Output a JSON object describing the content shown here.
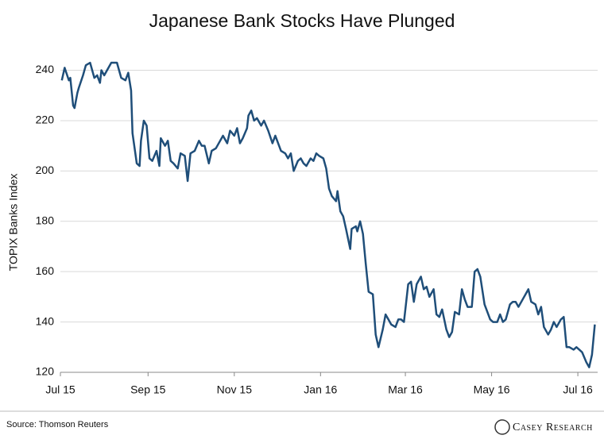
{
  "chart_data": {
    "type": "line",
    "title": "Japanese Bank Stocks Have Plunged",
    "y_label": "TOPIX Banks Index",
    "source": "Source: Thomson Reuters",
    "brand": "Casey Research",
    "color": "#1f4e79",
    "grid": true,
    "xlim": [
      0,
      380
    ],
    "xticks": [
      {
        "value": 0,
        "label": "Jul 15"
      },
      {
        "value": 62,
        "label": "Sep 15"
      },
      {
        "value": 123,
        "label": "Nov 15"
      },
      {
        "value": 184,
        "label": "Jan 16"
      },
      {
        "value": 244,
        "label": "Mar 16"
      },
      {
        "value": 305,
        "label": "May 16"
      },
      {
        "value": 366,
        "label": "Jul 16"
      }
    ],
    "ylim": [
      120,
      249
    ],
    "yticks": [
      120,
      140,
      160,
      180,
      200,
      220,
      240
    ],
    "x": [
      1,
      3,
      6,
      7,
      9,
      10,
      12,
      13,
      16,
      18,
      21,
      24,
      26,
      28,
      29,
      31,
      33,
      36,
      40,
      43,
      46,
      48,
      50,
      51,
      54,
      56,
      57,
      59,
      61,
      63,
      65,
      68,
      70,
      71,
      74,
      76,
      78,
      80,
      83,
      85,
      88,
      90,
      92,
      95,
      98,
      100,
      102,
      105,
      107,
      110,
      113,
      115,
      118,
      120,
      123,
      125,
      127,
      129,
      132,
      133,
      135,
      137,
      139,
      142,
      144,
      147,
      150,
      152,
      154,
      156,
      159,
      161,
      163,
      165,
      168,
      170,
      172,
      174,
      177,
      179,
      181,
      183,
      186,
      188,
      190,
      192,
      195,
      196,
      198,
      200,
      202,
      205,
      206,
      209,
      210,
      212,
      214,
      216,
      218,
      221,
      223,
      225,
      228,
      230,
      232,
      234,
      237,
      239,
      241,
      243,
      246,
      248,
      250,
      252,
      255,
      257,
      259,
      261,
      264,
      266,
      268,
      270,
      273,
      275,
      277,
      279,
      282,
      284,
      286,
      288,
      291,
      293,
      295,
      297,
      300,
      302,
      304,
      306,
      309,
      311,
      313,
      315,
      318,
      320,
      322,
      324,
      327,
      329,
      331,
      333,
      336,
      338,
      340,
      342,
      345,
      347,
      349,
      351,
      354,
      356,
      358,
      360,
      363,
      365,
      367,
      369,
      372,
      374,
      376,
      378
    ],
    "values": [
      236,
      241,
      236,
      237,
      226,
      225,
      231,
      233,
      238,
      242,
      243,
      237,
      238,
      235,
      240,
      238,
      240,
      243,
      243,
      237,
      236,
      239,
      232,
      215,
      203,
      202,
      212,
      220,
      218,
      205,
      204,
      208,
      202,
      213,
      210,
      212,
      204,
      203,
      201,
      207,
      206,
      196,
      207,
      208,
      212,
      210,
      210,
      203,
      208,
      209,
      212,
      214,
      211,
      216,
      214,
      217,
      211,
      213,
      217,
      222,
      224,
      220,
      221,
      218,
      220,
      216,
      211,
      214,
      211,
      208,
      207,
      205,
      207,
      200,
      204,
      205,
      203,
      202,
      205,
      204,
      207,
      206,
      205,
      201,
      193,
      190,
      188,
      192,
      184,
      182,
      177,
      169,
      177,
      178,
      176,
      180,
      175,
      163,
      152,
      151,
      135,
      130,
      137,
      143,
      141,
      139,
      138,
      141,
      141,
      140,
      155,
      156,
      148,
      155,
      158,
      153,
      154,
      150,
      153,
      143,
      142,
      145,
      137,
      134,
      136,
      144,
      143,
      153,
      149,
      146,
      146,
      160,
      161,
      158,
      147,
      144,
      141,
      140,
      140,
      143,
      140,
      141,
      147,
      148,
      148,
      146,
      149,
      151,
      153,
      148,
      147,
      143,
      146,
      138,
      135,
      137,
      140,
      138,
      141,
      142,
      130,
      130,
      129,
      130,
      129,
      128,
      124,
      122,
      127,
      139
    ]
  }
}
